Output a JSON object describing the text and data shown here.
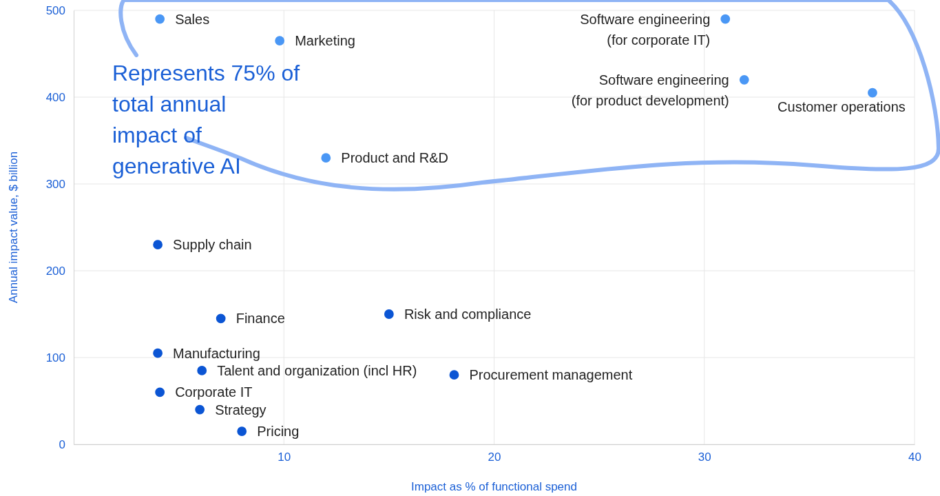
{
  "chart_data": {
    "type": "scatter",
    "xlabel": "Impact as % of functional spend",
    "ylabel": "Annual impact value, $ billion",
    "xlim": [
      0,
      40
    ],
    "xticks": [
      10,
      20,
      30,
      40
    ],
    "ylim": [
      0,
      500
    ],
    "yticks": [
      0,
      100,
      200,
      300,
      400,
      500
    ],
    "grid": true,
    "marker": "circle",
    "series": [
      {
        "color": "#4a97f5",
        "x": [
          4.1,
          9.8,
          12,
          31,
          31.9,
          38
        ],
        "values": [
          490,
          465,
          330,
          490,
          420,
          405
        ]
      },
      {
        "color": "#0b55d4",
        "x": [
          4,
          7,
          15,
          4,
          6.1,
          18.1,
          4.1,
          6,
          8
        ],
        "values": [
          230,
          145,
          150,
          105,
          85,
          80,
          60,
          40,
          15
        ]
      }
    ],
    "annotations": [
      "Represents 75% of total annual impact of generative AI",
      {
        "text": "Sales",
        "x": 4.1,
        "y": 490
      },
      {
        "text": "Marketing",
        "x": 9.8,
        "y": 465
      },
      {
        "text": "Product and R&D",
        "x": 12,
        "y": 330
      },
      {
        "text": "Software engineering (for corporate IT)",
        "x": 31,
        "y": 490
      },
      {
        "text": "Software engineering (for product development)",
        "x": 31.9,
        "y": 420
      },
      {
        "text": "Customer operations",
        "x": 38,
        "y": 405
      },
      {
        "text": "Supply chain",
        "x": 4,
        "y": 230
      },
      {
        "text": "Finance",
        "x": 7,
        "y": 145
      },
      {
        "text": "Risk and compliance",
        "x": 15,
        "y": 150
      },
      {
        "text": "Manufacturing",
        "x": 4,
        "y": 105
      },
      {
        "text": "Talent and organization (incl HR)",
        "x": 6.1,
        "y": 85
      },
      {
        "text": "Procurement management",
        "x": 18.1,
        "y": 80
      },
      {
        "text": "Corporate IT",
        "x": 4.1,
        "y": 60
      },
      {
        "text": "Strategy",
        "x": 6,
        "y": 40
      },
      {
        "text": "Pricing",
        "x": 8,
        "y": 15
      }
    ]
  }
}
